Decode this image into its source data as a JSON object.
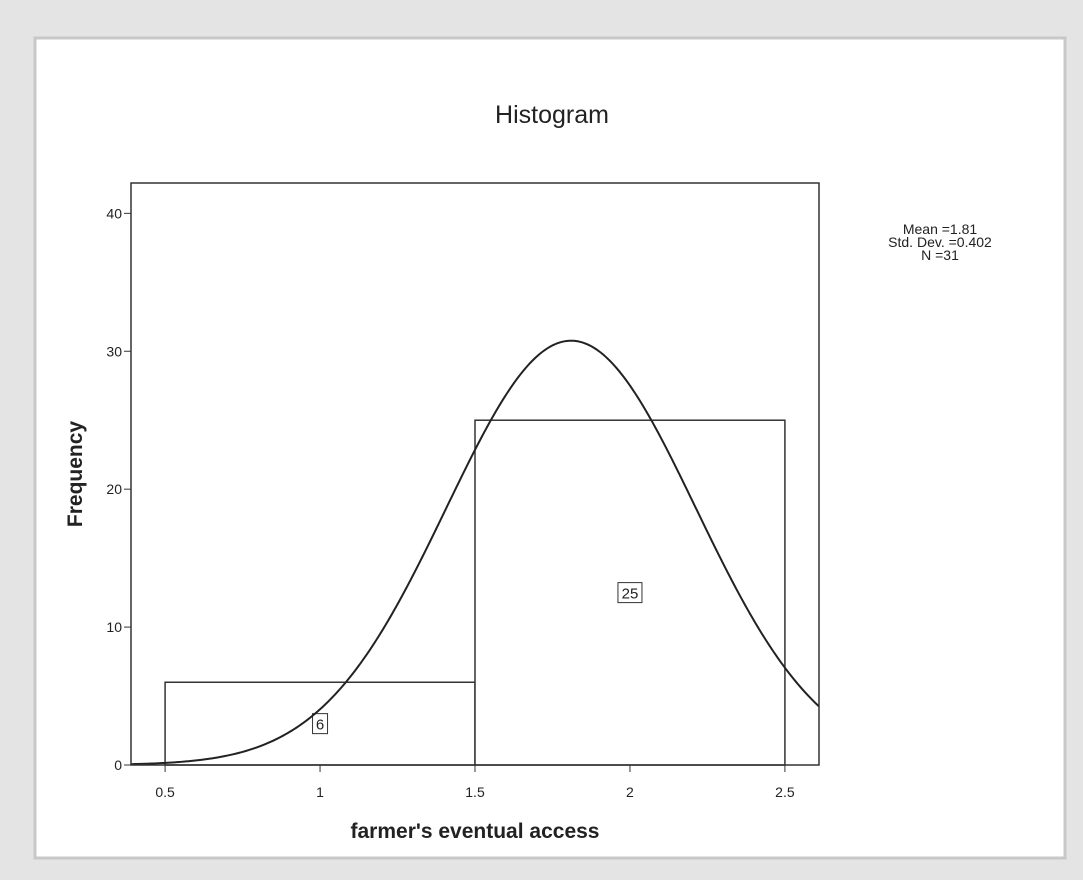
{
  "chart_data": {
    "type": "histogram",
    "title": "Histogram",
    "x_label": "farmer's eventual access",
    "y_label": "Frequency",
    "bins": [
      0.5,
      1.5,
      2.5
    ],
    "values": [
      6,
      25
    ],
    "color": "#ffffff",
    "xlim": [
      0.39,
      2.61
    ],
    "ylim": [
      0,
      42.2
    ],
    "xticks": [
      0.5,
      1,
      1.5,
      2,
      2.5
    ],
    "yticks": [
      0,
      10,
      20,
      30,
      40
    ],
    "normal_curve": true,
    "stats": [
      {
        "value": 1.81,
        "label": "Mean =1.81"
      },
      {
        "value": 0.402,
        "label": "Std. Dev. =0.402"
      },
      {
        "value": 31,
        "label": "N =31"
      }
    ]
  }
}
